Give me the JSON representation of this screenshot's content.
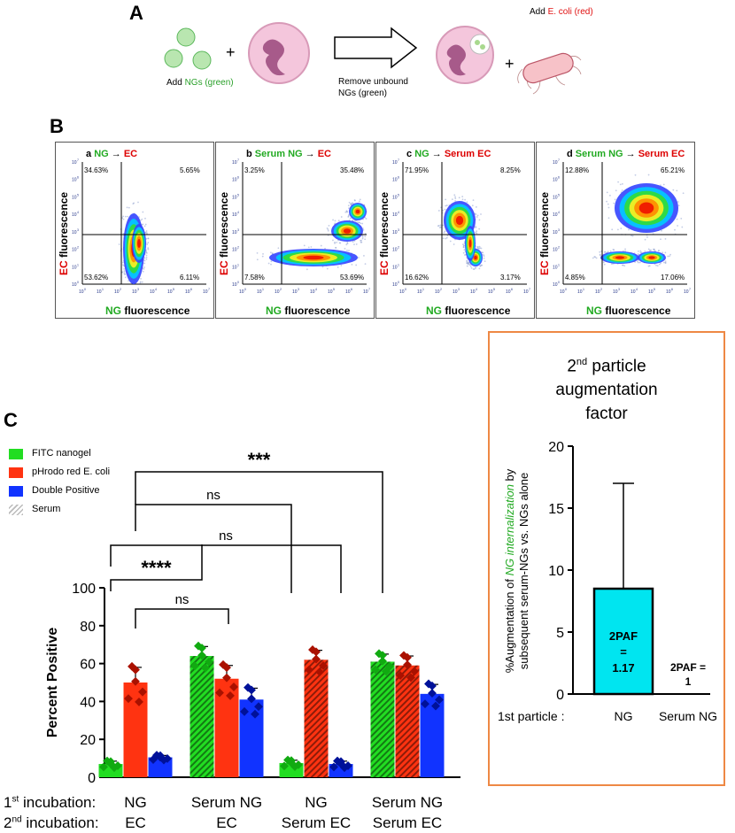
{
  "panelA": {
    "letter": "A",
    "add_ng_prefix": "Add ",
    "add_ng_colored": "NGs (green)",
    "plus": "+",
    "remove_line1": "Remove unbound",
    "remove_line2": "NGs (green)",
    "add_ec_prefix": "Add ",
    "add_ec_colored": "E. coli (red)"
  },
  "panelB": {
    "letter": "B",
    "arrow": "→",
    "plots": [
      {
        "tag": "a",
        "first": "NG",
        "second": "EC",
        "q_ul": "34.63%",
        "q_ur": "5.65%",
        "q_ll": "53.62%",
        "q_lr": "6.11%"
      },
      {
        "tag": "b",
        "first": "Serum NG",
        "second": "EC",
        "q_ul": "3.25%",
        "q_ur": "35.48%",
        "q_ll": "7.58%",
        "q_lr": "53.69%"
      },
      {
        "tag": "c",
        "first": "NG",
        "second": "Serum EC",
        "q_ul": "71.95%",
        "q_ur": "8.25%",
        "q_ll": "16.62%",
        "q_lr": "3.17%"
      },
      {
        "tag": "d",
        "first": "Serum NG",
        "second": "Serum EC",
        "q_ul": "12.88%",
        "q_ur": "65.21%",
        "q_ll": "4.85%",
        "q_lr": "17.06%"
      }
    ],
    "ylabel_ec": "EC",
    "ylabel_rest": " fluorescence",
    "xlabel_ng": "NG",
    "xlabel_rest": " fluorescence",
    "ticks": [
      "10",
      "10",
      "10",
      "10",
      "10",
      "10",
      "10",
      "10"
    ],
    "tick_exps": [
      "0",
      "1",
      "2",
      "3",
      "4",
      "5",
      "6",
      "7"
    ]
  },
  "panelC": {
    "letter": "C",
    "legend": [
      {
        "label": "FITC nanogel",
        "color": "#22dd22"
      },
      {
        "label": "pHrodo red E. coli",
        "color": "#ff3311"
      },
      {
        "label": "Double Positive",
        "color": "#1133ff"
      },
      {
        "label": "Serum",
        "color": "hatch"
      }
    ],
    "incubation1_label": "1st incubation:",
    "incubation2_label": "2nd incubation:",
    "sig_ns": "ns",
    "sig_3": "***",
    "sig_4": "****"
  },
  "chart_data": [
    {
      "type": "bar",
      "title": "",
      "ylabel": "Percent Positive",
      "ylim": [
        0,
        100
      ],
      "yticks": [
        0,
        20,
        40,
        60,
        80,
        100
      ],
      "categories": [
        {
          "first": "NG",
          "second": "EC"
        },
        {
          "first": "Serum NG",
          "second": "EC"
        },
        {
          "first": "NG",
          "second": "Serum EC"
        },
        {
          "first": "Serum NG",
          "second": "Serum EC"
        }
      ],
      "series": [
        {
          "name": "FITC nanogel",
          "color": "#22dd22",
          "values": [
            7,
            64,
            7.5,
            61
          ],
          "errors": [
            1.5,
            5,
            1.5,
            4
          ],
          "hatched": [
            false,
            true,
            false,
            true
          ]
        },
        {
          "name": "pHrodo red E. coli",
          "color": "#ff3311",
          "values": [
            50,
            52,
            62,
            59
          ],
          "errors": [
            8,
            7,
            5,
            5
          ],
          "hatched": [
            false,
            false,
            true,
            true
          ]
        },
        {
          "name": "Double Positive",
          "color": "#1133ff",
          "values": [
            10.5,
            41,
            7,
            44
          ],
          "errors": [
            1,
            6,
            1.5,
            5
          ],
          "hatched": [
            false,
            false,
            false,
            false
          ]
        }
      ]
    },
    {
      "type": "bar",
      "title": "2nd particle augmentation factor",
      "title_line1_base": "2",
      "title_line1_sup": "nd",
      "title_line1_rest": " particle",
      "title_line2": "augmentation",
      "title_line3": "factor",
      "ylabel_line1_prefix": "%Augmentation of ",
      "ylabel_line1_colored": "NG internalization",
      "ylabel_line1_suffix": " by",
      "ylabel_line2": "subsequent serum-NGs vs. NGs alone",
      "xlabel": "1st particle :",
      "ylim": [
        0,
        20
      ],
      "yticks": [
        0,
        5,
        10,
        15,
        20
      ],
      "categories": [
        "NG",
        "Serum NG"
      ],
      "values": [
        8.5,
        0
      ],
      "error_upper": [
        17,
        0
      ],
      "color": "#00e5f0",
      "annotations": [
        "2PAF\n=\n1.17",
        "2PAF =\n1"
      ],
      "ann_ng_l1": "2PAF",
      "ann_ng_l2": "=",
      "ann_ng_l3": "1.17",
      "ann_serum_l1": "2PAF =",
      "ann_serum_l2": "1"
    }
  ]
}
